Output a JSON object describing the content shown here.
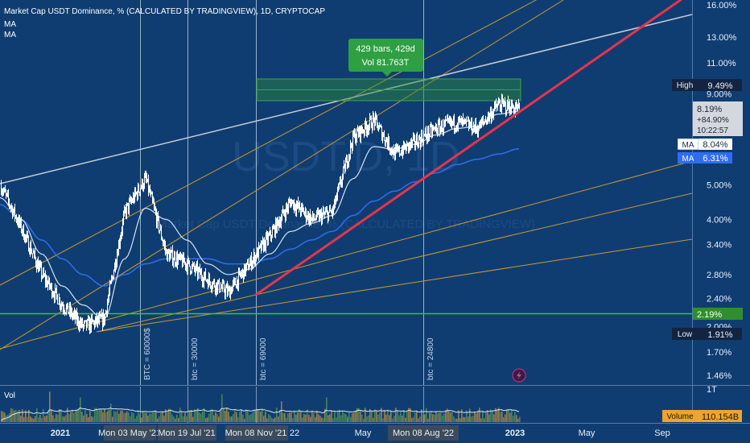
{
  "header": {
    "title": "Market Cap USDT Dominance, % (CALCULATED BY TRADINGVIEW), 1D, CRYPTOCAP",
    "ma_labels": [
      "MA",
      "MA"
    ]
  },
  "watermark": {
    "big": "USDT.D, 1D",
    "sub": "Market Cap USDT Dominance, % (CALCULATED BY TRADINGVIEW)"
  },
  "measure": {
    "line1": "429 bars, 429d",
    "line2": "Vol 81.763T"
  },
  "annotations": [
    {
      "text": "BTC = 60000$",
      "date_index": 1
    },
    {
      "text": "btc = 30000",
      "date_index": 2
    },
    {
      "text": "btc = 69000",
      "date_index": 3
    },
    {
      "text": "btc = 24800",
      "date_index": 4
    }
  ],
  "price_axis": {
    "ticks": [
      "16.00%",
      "13.00%",
      "11.00%",
      "9.00%",
      "5.00%",
      "4.00%",
      "3.40%",
      "2.80%",
      "2.40%",
      "2.00%",
      "1.70%",
      "1.46%"
    ],
    "tick_values": [
      16.0,
      13.0,
      11.0,
      9.0,
      5.0,
      4.0,
      3.4,
      2.8,
      2.4,
      2.0,
      1.7,
      1.46
    ],
    "range": [
      1.35,
      17.5
    ],
    "scale": "log",
    "high": {
      "label": "High",
      "value": "9.49%",
      "v": 9.49
    },
    "low": {
      "label": "Low",
      "value": "1.91%",
      "v": 1.91
    },
    "current": {
      "price": "8.19%",
      "change": "+84.90%",
      "countdown": "10:22:57",
      "v": 8.19
    },
    "ma1": {
      "label": "MA",
      "value": "8.04%",
      "v": 8.04
    },
    "ma2": {
      "label": "MA",
      "value": "6.31%",
      "v": 6.31
    },
    "hline": {
      "value": "2.19%",
      "v": 2.19
    }
  },
  "time_axis": {
    "labels": [
      "2021",
      "Mon 03 May '21",
      "Mon 19 Jul '21",
      "Mon 08 Nov '21",
      "22",
      "May",
      "Mon 08 Aug '22",
      "2023",
      "May",
      "Sep"
    ],
    "highlighted": [
      1,
      2,
      3,
      6
    ]
  },
  "volume": {
    "label": "Vol",
    "axis_tick": "1T",
    "badge_label": "Volume",
    "badge_value": "110.154B"
  },
  "colors": {
    "background": "#0f3d72",
    "candles": "#ffffff",
    "ma_short": "#d8e2ef",
    "ma_long": "#2f6df0",
    "trend_red": "#e8344a",
    "fan": "#c99a2e",
    "resistance": "#c7ccd6",
    "support": "#3cc23c",
    "measure": "#2e8b3a"
  },
  "chart_data": {
    "type": "line",
    "title": "Market Cap USDT Dominance, % (CALCULATED BY TRADINGVIEW), 1D, CRYPTOCAP",
    "yscale": "log",
    "ylim": [
      1.35,
      17.5
    ],
    "x": [
      "2020-12",
      "2021-01",
      "2021-02",
      "2021-03",
      "2021-04",
      "2021-05",
      "2021-06",
      "2021-07",
      "2021-08",
      "2021-09",
      "2021-10",
      "2021-11",
      "2021-12",
      "2022-01",
      "2022-02",
      "2022-03",
      "2022-04",
      "2022-05",
      "2022-06",
      "2022-07",
      "2022-08",
      "2022-09",
      "2022-10",
      "2022-11",
      "2022-12",
      "2023-01"
    ],
    "series": [
      {
        "values": [
          5.0,
          3.8,
          2.8,
          2.3,
          2.0,
          2.1,
          4.2,
          5.2,
          3.2,
          3.0,
          2.7,
          2.5,
          3.0,
          3.6,
          4.5,
          4.0,
          4.2,
          6.8,
          7.6,
          6.1,
          6.6,
          7.2,
          7.5,
          7.2,
          8.4,
          8.19
        ]
      },
      {
        "values": [
          4.6,
          4.0,
          3.2,
          2.6,
          2.3,
          2.1,
          3.1,
          4.3,
          4.0,
          3.5,
          3.0,
          2.8,
          2.9,
          3.2,
          3.7,
          3.9,
          4.1,
          5.2,
          6.4,
          6.3,
          6.5,
          6.9,
          7.2,
          7.3,
          7.9,
          8.04
        ]
      },
      {
        "values": [
          4.4,
          4.0,
          3.5,
          3.1,
          2.8,
          2.6,
          2.8,
          3.0,
          3.1,
          3.1,
          3.1,
          3.0,
          3.0,
          3.1,
          3.3,
          3.5,
          3.7,
          4.1,
          4.5,
          4.8,
          5.1,
          5.4,
          5.7,
          5.9,
          6.1,
          6.31
        ]
      }
    ]
  }
}
